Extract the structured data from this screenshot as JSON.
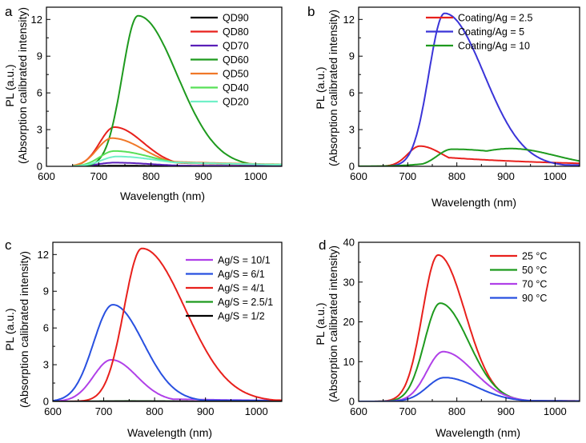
{
  "figure": {
    "panels": [
      "a",
      "b",
      "c",
      "d"
    ],
    "ylabel_line1": "PL (a.u.)",
    "ylabel_line2": "(Absorption calibrated intensity)",
    "xlabel": "Wavelength (nm)"
  },
  "chart_data": [
    {
      "panel": "a",
      "type": "line",
      "xlabel": "Wavelength (nm)",
      "ylabel": "PL (a.u.) (Absorption calibrated intensity)",
      "xlim": [
        600,
        1050
      ],
      "ylim": [
        0,
        13
      ],
      "xticks": [
        600,
        700,
        800,
        900,
        1000
      ],
      "yticks": [
        0,
        3,
        6,
        9,
        12
      ],
      "legend_position": "top-right",
      "series": [
        {
          "name": "QD90",
          "color": "#000000",
          "peak_x": 740,
          "peak_y": 0.05,
          "sigma_left": 40,
          "sigma_right": 60,
          "tail": 0,
          "x_start": 650
        },
        {
          "name": "QD80",
          "color": "#e8201c",
          "peak_x": 730,
          "peak_y": 3.2,
          "sigma_left": 28,
          "sigma_right": 55,
          "tail": 0.45,
          "x_start": 650
        },
        {
          "name": "QD70",
          "color": "#5a1fb8",
          "peak_x": 730,
          "peak_y": 0.3,
          "sigma_left": 30,
          "sigma_right": 70,
          "tail": 0.1,
          "x_start": 650
        },
        {
          "name": "QD60",
          "color": "#1e9a1e",
          "peak_x": 775,
          "peak_y": 12.3,
          "sigma_left": 30,
          "sigma_right": 75,
          "tail": 0.4,
          "x_start": 650
        },
        {
          "name": "QD50",
          "color": "#f07828",
          "peak_x": 725,
          "peak_y": 2.3,
          "sigma_left": 28,
          "sigma_right": 60,
          "tail": 0.6,
          "x_start": 650
        },
        {
          "name": "QD40",
          "color": "#58e058",
          "peak_x": 730,
          "peak_y": 1.25,
          "sigma_left": 28,
          "sigma_right": 70,
          "tail": 0.5,
          "x_start": 650
        },
        {
          "name": "QD20",
          "color": "#70f0c8",
          "peak_x": 735,
          "peak_y": 0.8,
          "sigma_left": 30,
          "sigma_right": 80,
          "tail": 0.5,
          "x_start": 650
        }
      ]
    },
    {
      "panel": "b",
      "type": "line",
      "xlabel": "Wavelength (nm)",
      "ylabel": "PL (a.u.) (Absorption calibrated intensity)",
      "xlim": [
        600,
        1050
      ],
      "ylim": [
        0,
        13
      ],
      "xticks": [
        600,
        700,
        800,
        900,
        1000
      ],
      "yticks": [
        0,
        3,
        6,
        9,
        12
      ],
      "legend_position": "top-right",
      "series": [
        {
          "name": "Coating/Ag = 2.5",
          "color": "#e8201c",
          "peak_x": 725,
          "peak_y": 1.65,
          "sigma_left": 25,
          "sigma_right": 45,
          "tail": 0.9,
          "x_start": 600
        },
        {
          "name": "Coating/Ag = 5",
          "color": "#3a34d8",
          "peak_x": 775,
          "peak_y": 12.5,
          "sigma_left": 32,
          "sigma_right": 80,
          "tail": 0.3,
          "x_start": 600
        },
        {
          "name": "Coating/Ag = 10",
          "color": "#1e9a1e",
          "peak_x": 790,
          "peak_y": 1.4,
          "sigma_left": 30,
          "sigma_right": 150,
          "tail": 0,
          "second_peak_x": 910,
          "second_peak_y": 1.45,
          "x_start": 600
        }
      ]
    },
    {
      "panel": "c",
      "type": "line",
      "xlabel": "Wavelength (nm)",
      "ylabel": "PL (a.u.) (Absorption calibrated intensity)",
      "xlim": [
        600,
        1050
      ],
      "ylim": [
        0,
        13
      ],
      "xticks": [
        600,
        700,
        800,
        900,
        1000
      ],
      "yticks": [
        0,
        3,
        6,
        9,
        12
      ],
      "legend_position": "top-right",
      "series": [
        {
          "name": "Ag/S = 10/1",
          "color": "#b040e8",
          "peak_x": 715,
          "peak_y": 3.4,
          "sigma_left": 35,
          "sigma_right": 50,
          "tail": 0.3,
          "x_start": 600
        },
        {
          "name": "Ag/S = 6/1",
          "color": "#2850e0",
          "peak_x": 718,
          "peak_y": 7.9,
          "sigma_left": 38,
          "sigma_right": 60,
          "tail": 0.2,
          "x_start": 600
        },
        {
          "name": "Ag/S = 4/1",
          "color": "#e8201c",
          "peak_x": 775,
          "peak_y": 12.5,
          "sigma_left": 35,
          "sigma_right": 85,
          "tail": 0.3,
          "x_start": 600
        },
        {
          "name": "Ag/S = 2.5/1",
          "color": "#1e9a1e",
          "peak_x": 750,
          "peak_y": 0.03,
          "sigma_left": 40,
          "sigma_right": 60,
          "tail": 0,
          "x_start": 600
        },
        {
          "name": "Ag/S = 1/2",
          "color": "#000000",
          "peak_x": 750,
          "peak_y": 0.02,
          "sigma_left": 40,
          "sigma_right": 60,
          "tail": 0,
          "x_start": 600
        }
      ]
    },
    {
      "panel": "d",
      "type": "line",
      "xlabel": "Wavelength (nm)",
      "ylabel": "PL (a.u.) (Absorption calibrated intensity)",
      "xlim": [
        600,
        1050
      ],
      "ylim": [
        0,
        40
      ],
      "xticks": [
        600,
        700,
        800,
        900,
        1000
      ],
      "yticks": [
        0,
        10,
        20,
        30,
        40
      ],
      "legend_position": "top-right",
      "series": [
        {
          "name": "25 °C",
          "color": "#e8201c",
          "peak_x": 762,
          "peak_y": 36.8,
          "sigma_left": 32,
          "sigma_right": 55,
          "tail": 0.4,
          "x_start": 600
        },
        {
          "name": "50 °C",
          "color": "#1e9a1e",
          "peak_x": 766,
          "peak_y": 24.7,
          "sigma_left": 32,
          "sigma_right": 58,
          "tail": 0.3,
          "x_start": 600
        },
        {
          "name": "70 °C",
          "color": "#b040e8",
          "peak_x": 772,
          "peak_y": 12.5,
          "sigma_left": 33,
          "sigma_right": 62,
          "tail": 0.3,
          "x_start": 600
        },
        {
          "name": "90 °C",
          "color": "#2850e0",
          "peak_x": 775,
          "peak_y": 6.0,
          "sigma_left": 35,
          "sigma_right": 65,
          "tail": 0.3,
          "x_start": 600
        }
      ]
    }
  ]
}
